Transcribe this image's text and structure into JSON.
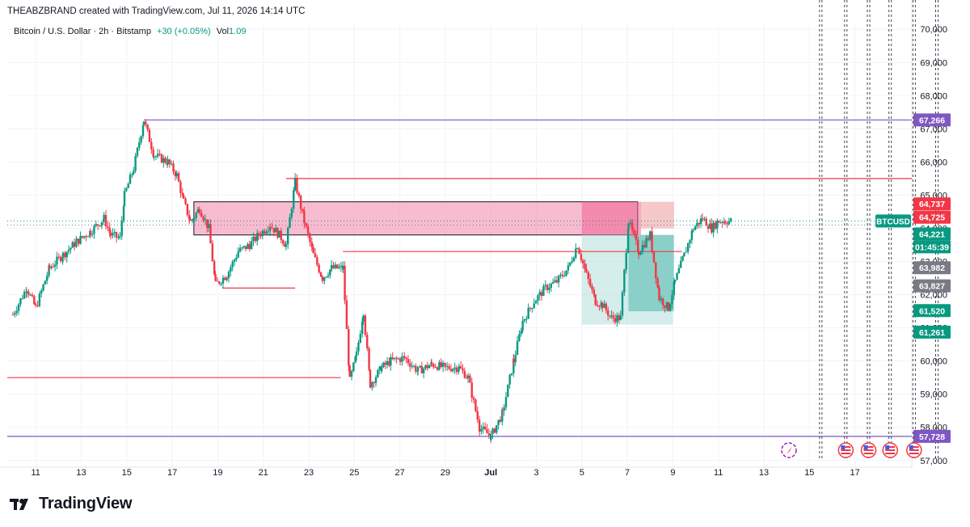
{
  "header": {
    "credit": "THEABZBRAND created with TradingView.com, Jul 11, 2026 14:14 UTC"
  },
  "legend": {
    "symbol": "Bitcoin / U.S. Dollar · 2h · Bitstamp",
    "change": "+30 (+0.05%)",
    "vol_label": "Vol",
    "vol_value": "1.09"
  },
  "footer": {
    "brand": "TradingView"
  },
  "colors": {
    "up": "#089981",
    "down": "#f23645",
    "purple": "#7e57c2",
    "pink_zone": "#f48fb1",
    "teal_zone": "#80cbc4",
    "axis_text": "#131722"
  },
  "chart_data": {
    "type": "candlestick",
    "symbol": "BTCUSD",
    "y_ticks": [
      "70,000",
      "69,000",
      "68,000",
      "67,000",
      "66,000",
      "65,000",
      "64,000",
      "63,000",
      "62,000",
      "61,000",
      "60,000",
      "59,000",
      "58,000",
      "57,000"
    ],
    "y_tick_values": [
      70000,
      69000,
      68000,
      67000,
      66000,
      65000,
      64000,
      63000,
      62000,
      61000,
      60000,
      59000,
      58000,
      57000
    ],
    "ylim": [
      56800,
      70200
    ],
    "x_ticks": [
      "11",
      "13",
      "15",
      "17",
      "19",
      "21",
      "23",
      "25",
      "27",
      "29",
      "Jul",
      "3",
      "5",
      "7",
      "9",
      "11",
      "13",
      "15",
      "17"
    ],
    "x_tick_days": [
      11,
      13,
      15,
      17,
      19,
      21,
      23,
      25,
      27,
      29,
      31,
      33,
      35,
      37,
      39,
      41,
      43,
      45,
      47
    ],
    "xlim": [
      9.75,
      49.5
    ],
    "price_labels": [
      {
        "text": "67,266",
        "value": 67266,
        "color": "#7e57c2"
      },
      {
        "text": "64,737",
        "value": 64737,
        "color": "#f23645"
      },
      {
        "text": "64,725",
        "value": 64725,
        "color": "#f23645"
      },
      {
        "text": "BTCUSD",
        "value": 64221,
        "color": "#089981"
      },
      {
        "text": "64,221",
        "value": 64221,
        "color": "#089981"
      },
      {
        "text": "01:45:39",
        "value": 64221,
        "color": "#089981"
      },
      {
        "text": "63,982",
        "value": 63982,
        "color": "#787b86"
      },
      {
        "text": "63,827",
        "value": 63827,
        "color": "#787b86"
      },
      {
        "text": "61,520",
        "value": 61520,
        "color": "#089981"
      },
      {
        "text": "61,261",
        "value": 61261,
        "color": "#089981"
      },
      {
        "text": "57,728",
        "value": 57728,
        "color": "#7e57c2"
      }
    ],
    "hlines": [
      {
        "day_from": 15.75,
        "day_to": 49.5,
        "price": 67266,
        "color": "#7e57c2"
      },
      {
        "day_from": 9.75,
        "day_to": 49.5,
        "price": 57728,
        "color": "#7e57c2"
      },
      {
        "day_from": 22.0,
        "day_to": 49.5,
        "price": 65500,
        "color": "#f23645"
      },
      {
        "day_from": 24.5,
        "day_to": 39.4,
        "price": 63300,
        "color": "#f23645"
      },
      {
        "day_from": 19.2,
        "day_to": 22.4,
        "price": 62200,
        "color": "#f23645"
      },
      {
        "day_from": 9.75,
        "day_to": 24.4,
        "price": 59500,
        "color": "#f23645"
      }
    ],
    "zones": [
      {
        "day_from": 17.95,
        "day_to": 37.45,
        "price_top": 64800,
        "price_bottom": 63800,
        "color": "#f48fb1",
        "outline": true
      },
      {
        "day_from": 35.0,
        "day_to": 37.6,
        "price_top": 64800,
        "price_bottom": 63800,
        "color": "#f06292",
        "outline": false
      },
      {
        "day_from": 37.6,
        "day_to": 39.05,
        "price_top": 64800,
        "price_bottom": 64000,
        "color": "#ef9a9a",
        "outline": false
      },
      {
        "day_from": 35.0,
        "day_to": 39.0,
        "price_top": 63800,
        "price_bottom": 61100,
        "color": "#b2dfdb",
        "outline": false
      },
      {
        "day_from": 37.05,
        "day_to": 39.05,
        "price_top": 63800,
        "price_bottom": 61500,
        "color": "#4db6ac",
        "outline": false
      }
    ],
    "session_lines_day": [
      45.5,
      46.6,
      47.6,
      48.55,
      49.6,
      50.6
    ],
    "series_path": [
      [
        10.0,
        61400
      ],
      [
        10.6,
        62200
      ],
      [
        11.0,
        61600
      ],
      [
        11.6,
        62800
      ],
      [
        12.2,
        63200
      ],
      [
        12.8,
        63600
      ],
      [
        13.4,
        63900
      ],
      [
        14.0,
        64300
      ],
      [
        14.3,
        63800
      ],
      [
        14.7,
        63700
      ],
      [
        14.9,
        65000
      ],
      [
        15.3,
        65800
      ],
      [
        15.75,
        67266
      ],
      [
        16.2,
        66200
      ],
      [
        16.8,
        66000
      ],
      [
        17.2,
        65600
      ],
      [
        17.5,
        64800
      ],
      [
        17.8,
        64200
      ],
      [
        18.2,
        64600
      ],
      [
        18.6,
        64000
      ],
      [
        18.9,
        62300
      ],
      [
        19.4,
        62600
      ],
      [
        19.9,
        63300
      ],
      [
        20.4,
        63500
      ],
      [
        20.8,
        63800
      ],
      [
        21.3,
        64100
      ],
      [
        21.7,
        63800
      ],
      [
        22.0,
        63500
      ],
      [
        22.4,
        65400
      ],
      [
        22.8,
        64200
      ],
      [
        23.2,
        63200
      ],
      [
        23.6,
        62500
      ],
      [
        24.0,
        62800
      ],
      [
        24.5,
        62800
      ],
      [
        24.8,
        59400
      ],
      [
        25.1,
        60200
      ],
      [
        25.4,
        61500
      ],
      [
        25.7,
        59300
      ],
      [
        26.2,
        59800
      ],
      [
        26.6,
        60000
      ],
      [
        27.2,
        60100
      ],
      [
        27.8,
        59700
      ],
      [
        28.4,
        59900
      ],
      [
        29.0,
        59800
      ],
      [
        29.6,
        59800
      ],
      [
        30.0,
        59500
      ],
      [
        30.5,
        58000
      ],
      [
        31.0,
        57728
      ],
      [
        31.5,
        58400
      ],
      [
        32.0,
        60000
      ],
      [
        32.4,
        61200
      ],
      [
        32.9,
        61800
      ],
      [
        33.4,
        62200
      ],
      [
        33.9,
        62400
      ],
      [
        34.4,
        62800
      ],
      [
        34.8,
        63500
      ],
      [
        35.2,
        62600
      ],
      [
        35.6,
        61800
      ],
      [
        35.9,
        61700
      ],
      [
        36.3,
        61300
      ],
      [
        36.7,
        61300
      ],
      [
        37.05,
        64221
      ],
      [
        37.5,
        63300
      ],
      [
        38.0,
        63800
      ],
      [
        38.4,
        61900
      ],
      [
        38.8,
        61600
      ],
      [
        39.1,
        62400
      ],
      [
        39.5,
        63200
      ],
      [
        39.9,
        64000
      ],
      [
        40.3,
        64300
      ],
      [
        40.7,
        64000
      ],
      [
        41.0,
        64221
      ],
      [
        41.3,
        64221
      ],
      [
        41.6,
        64221
      ]
    ]
  }
}
